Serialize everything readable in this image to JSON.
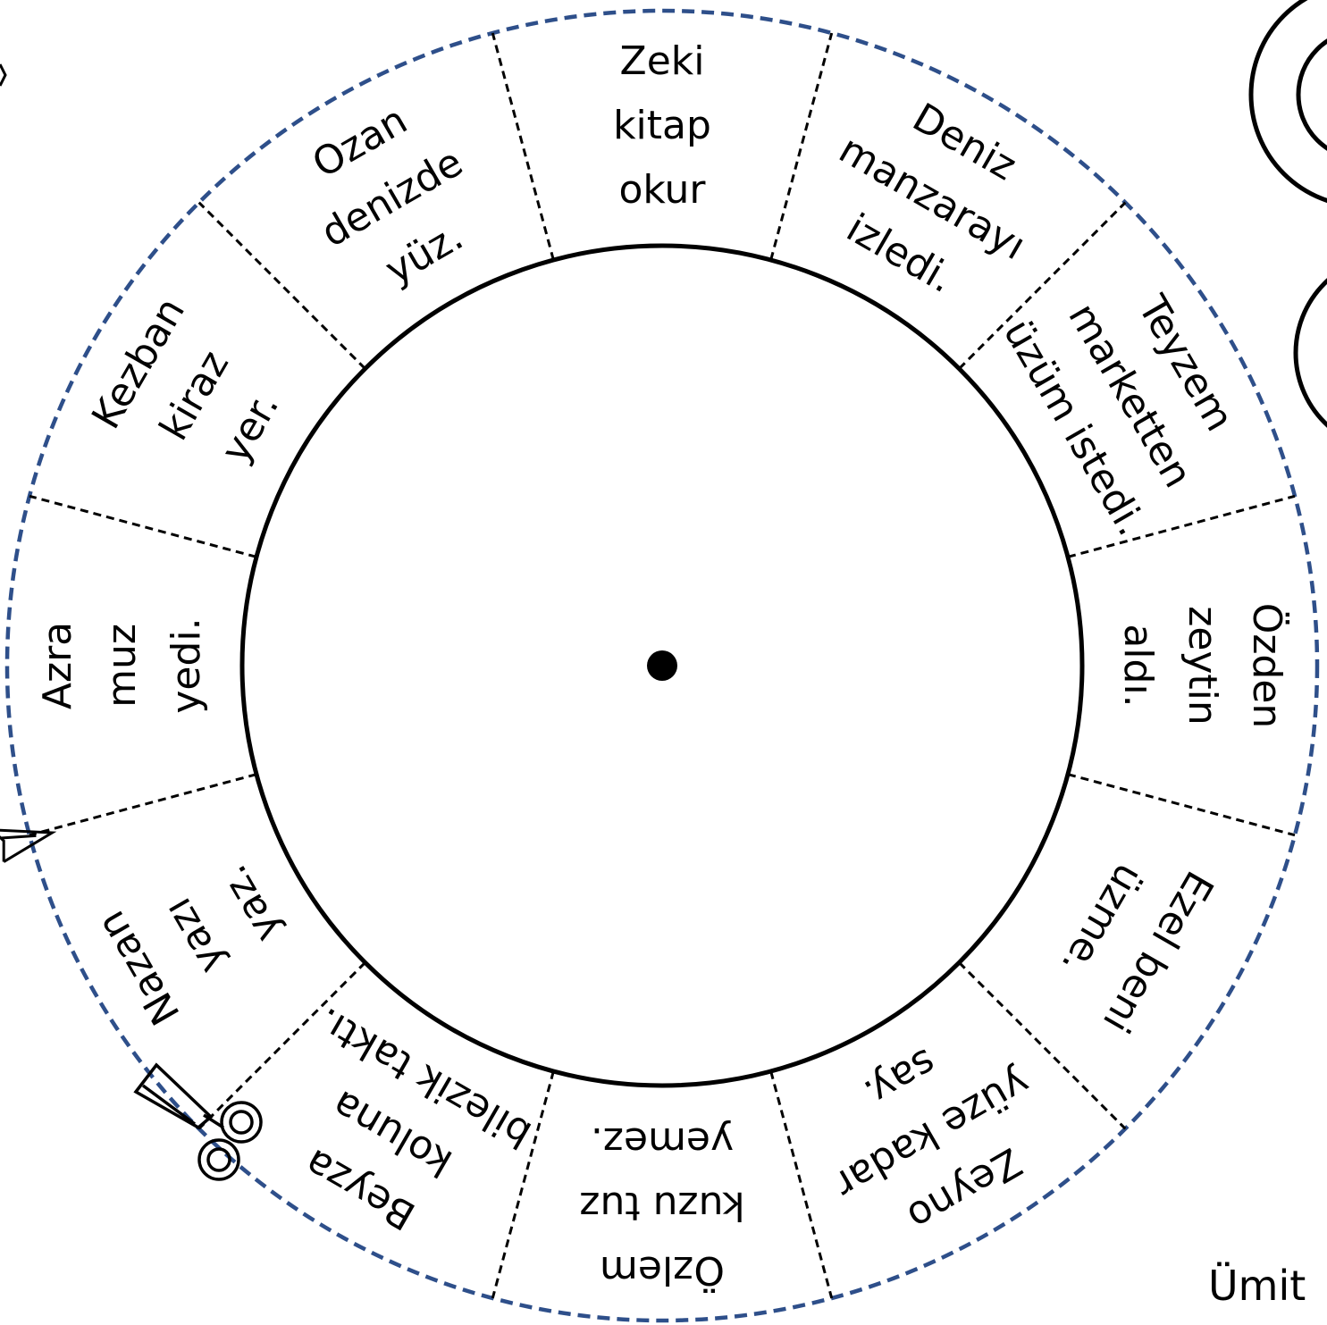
{
  "wheel": {
    "segments": [
      {
        "lines": [
          "Zeki",
          "kitap",
          "okur"
        ]
      },
      {
        "lines": [
          "Deniz",
          "manzarayı",
          "izledi."
        ]
      },
      {
        "lines": [
          "Teyzem",
          "marketten",
          "üzüm istedi."
        ]
      },
      {
        "lines": [
          "Özden",
          "zeytin",
          "aldı."
        ]
      },
      {
        "lines": [
          "Ezel beni",
          "üzme."
        ]
      },
      {
        "lines": [
          "Zeyno",
          "yüze kadar",
          "say."
        ]
      },
      {
        "lines": [
          "Özlem",
          "kuzu tuz",
          "yemez."
        ]
      },
      {
        "lines": [
          "Beyza",
          "koluna",
          "bilezik taktı."
        ]
      },
      {
        "lines": [
          "Nazan",
          "yazı",
          "yaz."
        ]
      },
      {
        "lines": [
          "Azra",
          "muz",
          "yedi."
        ]
      },
      {
        "lines": [
          "Kezban",
          "kiraz",
          "yer."
        ]
      },
      {
        "lines": [
          "Ozan",
          "denizde",
          "yüz."
        ]
      }
    ],
    "outline_color": "#2e4f8a",
    "line_color": "#000000"
  },
  "footer": {
    "author": "Ümit"
  },
  "icons": [
    "scissors-icon",
    "scissors-icon"
  ]
}
